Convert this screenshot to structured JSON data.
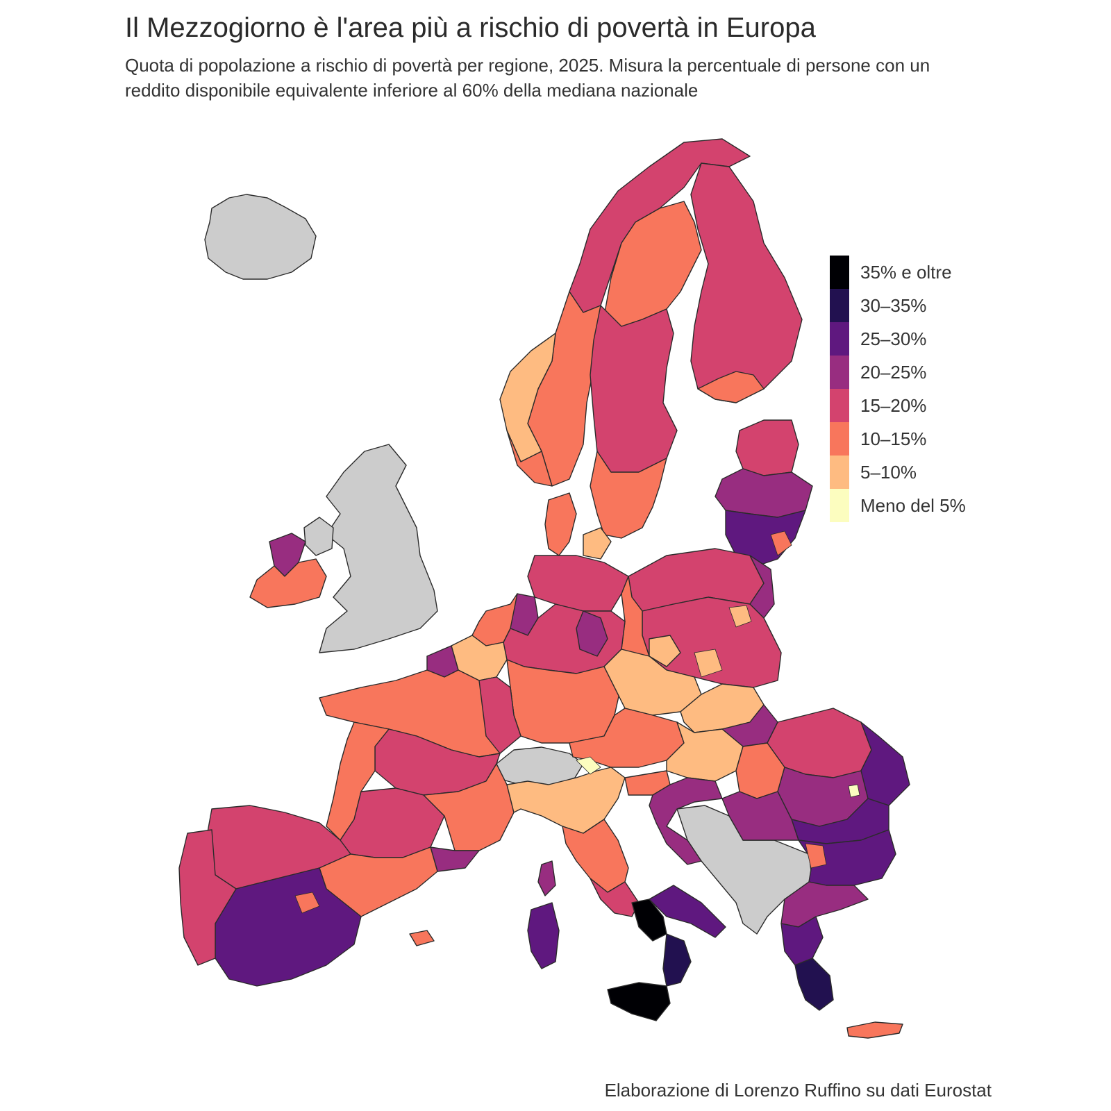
{
  "title": "Il Mezzogiorno è l'area più a rischio di povertà in Europa",
  "subtitle": "Quota di popolazione a rischio di povertà per regione, 2025. Misura la percentuale di persone con un reddito disponibile equivalente inferiore al 60% della mediana nazionale",
  "caption": "Elaborazione di Lorenzo Ruffino su dati Eurostat",
  "legend": [
    {
      "label": "35% e oltre",
      "color": "#000004"
    },
    {
      "label": "30–35%",
      "color": "#221150"
    },
    {
      "label": "25–30%",
      "color": "#5f187f"
    },
    {
      "label": "20–25%",
      "color": "#982d80"
    },
    {
      "label": "15–20%",
      "color": "#d3436e"
    },
    {
      "label": "10–15%",
      "color": "#f8765c"
    },
    {
      "label": "5–10%",
      "color": "#febb81"
    },
    {
      "label": "Meno del 5%",
      "color": "#fcfdbf"
    }
  ],
  "no_data_color": "#cccccc"
}
